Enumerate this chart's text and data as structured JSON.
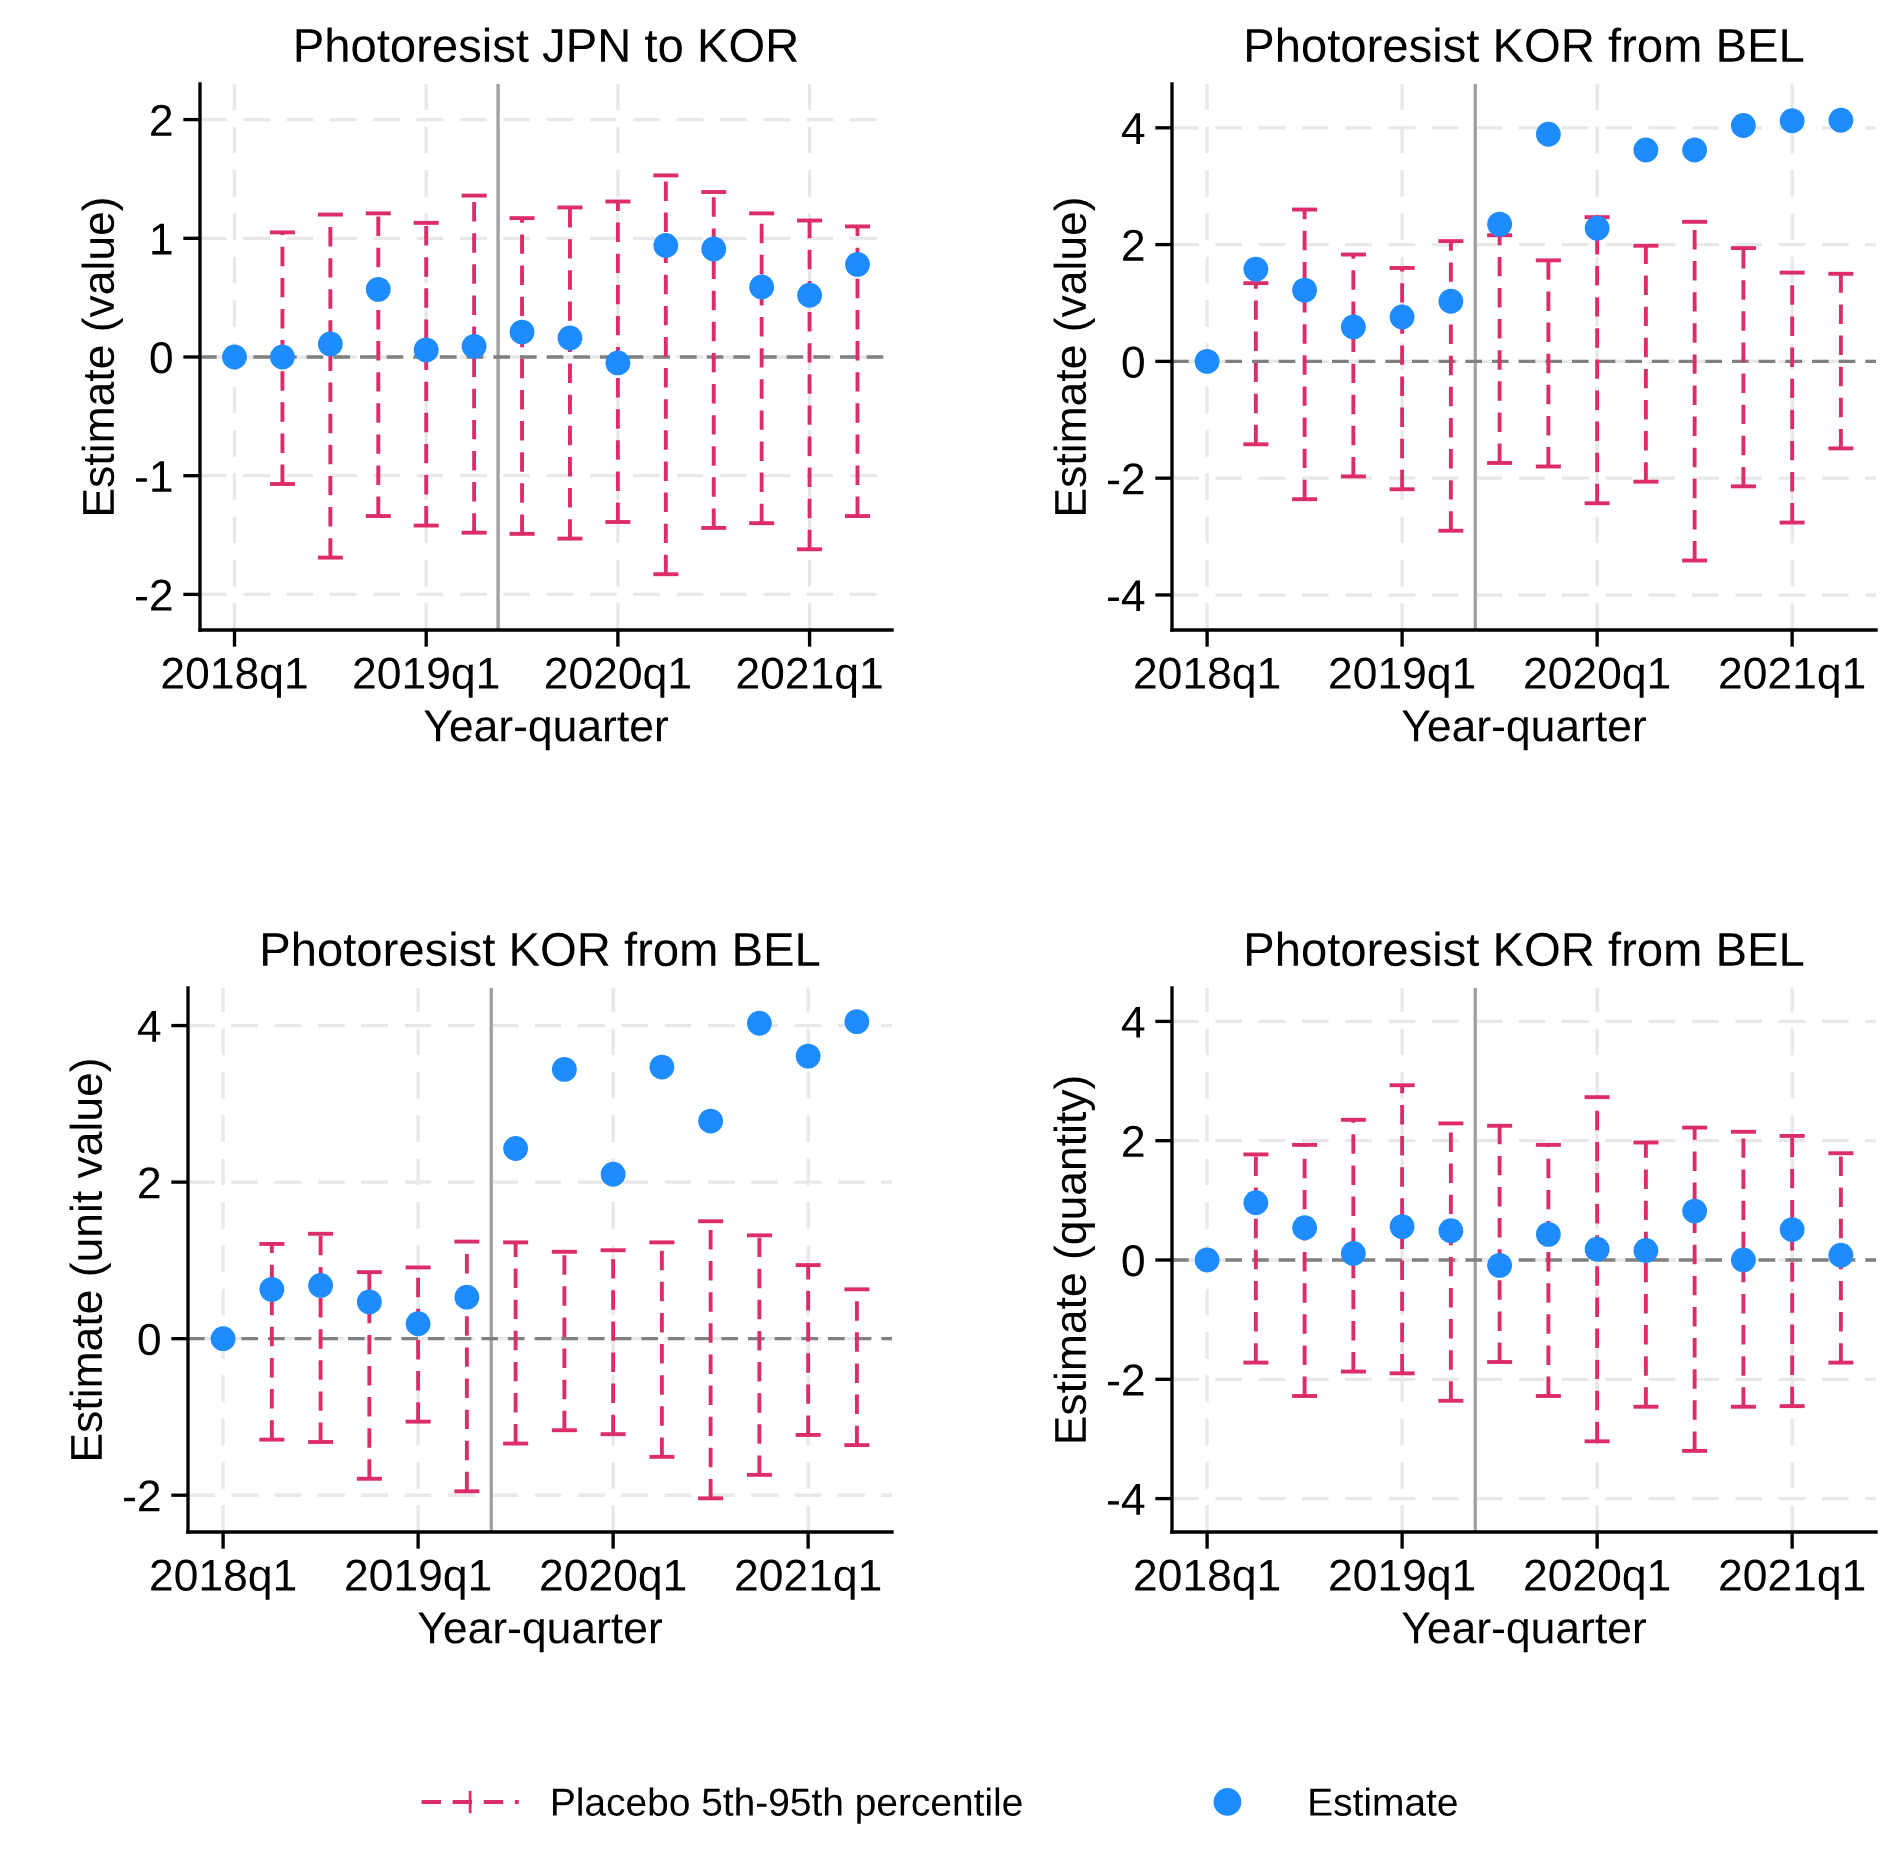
{
  "chart_data": [
    {
      "type": "scatter",
      "title": "Photoresist JPN to KOR",
      "xlabel": "Year-quarter",
      "ylabel": "Estimate (value)",
      "categories": [
        "2018q1",
        null,
        null,
        null,
        "2019q1",
        null,
        null,
        null,
        "2020q1",
        null,
        null,
        null,
        "2021q1",
        null
      ],
      "series": [
        {
          "name": "Estimate",
          "color": "#1e8cff",
          "marker": "circle",
          "line_style": "dashed",
          "values": [
            0,
            0,
            0.11,
            0.57,
            0.06,
            0.09,
            0.21,
            0.16,
            -0.05,
            0.94,
            0.91,
            0.59,
            0.52,
            0.78
          ],
          "errors": [
            null,
            [
              -1.07,
              1.05
            ],
            [
              -1.69,
              1.2
            ],
            [
              -1.34,
              1.21
            ],
            [
              -1.42,
              1.13
            ],
            [
              -1.48,
              1.36
            ],
            [
              -1.49,
              1.17
            ],
            [
              -1.53,
              1.26
            ],
            [
              -1.39,
              1.31
            ],
            [
              -1.83,
              1.53
            ],
            [
              -1.44,
              1.39
            ],
            [
              -1.4,
              1.21
            ],
            [
              -1.62,
              1.15
            ],
            [
              -1.34,
              1.1
            ]
          ]
        }
      ],
      "ylim": [
        -2.3,
        2.3
      ],
      "yticks": [
        -2,
        -1,
        0,
        1,
        2
      ],
      "ref_lines": [
        {
          "axis": "y",
          "value": 0,
          "color": "#808080",
          "line_style": "dashed"
        }
      ],
      "annotations": [
        "Placebo 5th-95th percentile"
      ],
      "grid": true,
      "legend": "bottom"
    },
    {
      "type": "scatter",
      "title": "Photoresist KOR from BEL",
      "xlabel": "Year-quarter",
      "ylabel": "Estimate (value)",
      "categories": [
        "2018q1",
        null,
        null,
        null,
        "2019q1",
        null,
        null,
        null,
        "2020q1",
        null,
        null,
        null,
        "2021q1",
        null
      ],
      "series": [
        {
          "color": "#1e8cff",
          "marker": "circle",
          "line_style": "dashed",
          "values": [
            0,
            1.58,
            1.22,
            0.59,
            0.76,
            1.03,
            2.35,
            3.89,
            2.28,
            3.62,
            3.62,
            4.04,
            4.12,
            4.13
          ],
          "errors": [
            null,
            [
              -1.42,
              1.34
            ],
            [
              -2.36,
              2.6
            ],
            [
              -1.97,
              1.83
            ],
            [
              -2.19,
              1.6
            ],
            [
              -2.9,
              2.06
            ],
            [
              -1.74,
              2.16
            ],
            [
              -1.8,
              1.73
            ],
            [
              -2.43,
              2.47
            ],
            [
              -2.06,
              1.98
            ],
            [
              -3.41,
              2.39
            ],
            [
              -2.14,
              1.94
            ],
            [
              -2.76,
              1.52
            ],
            [
              -1.49,
              1.5
            ]
          ]
        }
      ],
      "ylim": [
        -4.6,
        4.75
      ],
      "yticks": [
        -4,
        -2,
        0,
        2,
        4
      ],
      "ref_lines": [
        {
          "axis": "y",
          "value": 0,
          "color": "#808080",
          "line_style": "dashed"
        }
      ],
      "grid": true
    },
    {
      "type": "scatter",
      "title": "Photoresist KOR from BEL",
      "xlabel": "Year-quarter",
      "ylabel": "Estimate (unit value)",
      "categories": [
        "2018q1",
        null,
        null,
        null,
        "2019q1",
        null,
        null,
        null,
        "2020q1",
        null,
        null,
        null,
        "2021q1",
        null
      ],
      "series": [
        {
          "color": "#1e8cff",
          "marker": "circle",
          "line_style": "dashed",
          "values": [
            0,
            0.63,
            0.68,
            0.47,
            0.19,
            0.53,
            2.43,
            3.44,
            2.1,
            3.47,
            2.78,
            4.03,
            3.61,
            4.05
          ],
          "errors": [
            null,
            [
              -1.29,
              1.21
            ],
            [
              -1.32,
              1.34
            ],
            [
              -1.79,
              0.85
            ],
            [
              -1.06,
              0.91
            ],
            [
              -1.95,
              1.24
            ],
            [
              -1.34,
              1.23
            ],
            [
              -1.17,
              1.11
            ],
            [
              -1.22,
              1.13
            ],
            [
              -1.51,
              1.23
            ],
            [
              -2.04,
              1.5
            ],
            [
              -1.74,
              1.32
            ],
            [
              -1.23,
              0.94
            ],
            [
              -1.36,
              0.63
            ]
          ]
        }
      ],
      "ylim": [
        -2.47,
        4.48
      ],
      "yticks": [
        -2,
        0,
        2,
        4
      ],
      "ref_lines": [
        {
          "axis": "y",
          "value": 0,
          "color": "#808080",
          "line_style": "dashed"
        }
      ],
      "grid": true
    },
    {
      "type": "scatter",
      "title": "Photoresist KOR from BEL",
      "xlabel": "Year-quarter",
      "ylabel": "Estimate (quantity)",
      "categories": [
        "2018q1",
        null,
        null,
        null,
        "2019q1",
        null,
        null,
        null,
        "2020q1",
        null,
        null,
        null,
        "2021q1",
        null
      ],
      "series": [
        {
          "color": "#1e8cff",
          "marker": "circle",
          "line_style": "dashed",
          "values": [
            0,
            0.96,
            0.54,
            0.11,
            0.56,
            0.49,
            -0.09,
            0.43,
            0.18,
            0.16,
            0.82,
            0,
            0.51,
            0.08
          ],
          "errors": [
            null,
            [
              -1.72,
              1.77
            ],
            [
              -2.28,
              1.93
            ],
            [
              -1.87,
              2.35
            ],
            [
              -1.9,
              2.93
            ],
            [
              -2.36,
              2.29
            ],
            [
              -1.71,
              2.25
            ],
            [
              -2.28,
              1.93
            ],
            [
              -3.04,
              2.73
            ],
            [
              -2.46,
              1.97
            ],
            [
              -3.2,
              2.22
            ],
            [
              -2.46,
              2.15
            ],
            [
              -2.45,
              2.08
            ],
            [
              -1.72,
              1.79
            ]
          ]
        }
      ],
      "ylim": [
        -4.56,
        4.56
      ],
      "yticks": [
        -4,
        -2,
        0,
        2,
        4
      ],
      "ref_lines": [
        {
          "axis": "y",
          "value": 0,
          "color": "#808080",
          "line_style": "dashed"
        }
      ],
      "grid": true
    }
  ]
}
